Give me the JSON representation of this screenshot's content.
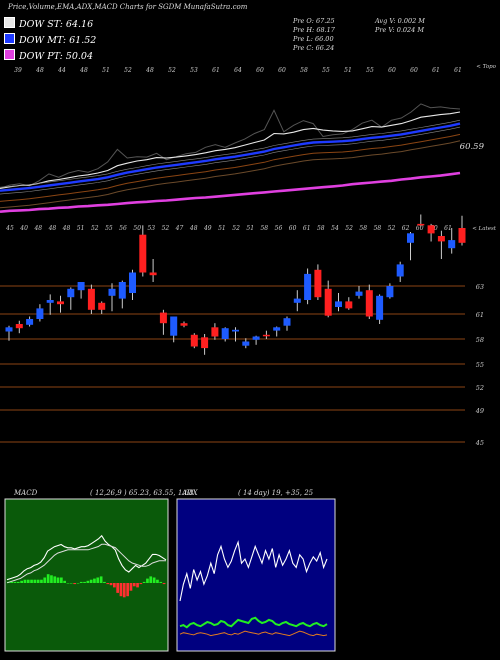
{
  "title": "Price,Volume,EMA,ADX,MACD Charts for SGDM MunafaSutra.com",
  "legend": [
    {
      "label": "DOW ST: 64.16",
      "color": "#e8e8e8"
    },
    {
      "label": "DOW MT: 61.52",
      "color": "#1e3aff"
    },
    {
      "label": "DOW PT: 50.04",
      "color": "#e040e0"
    }
  ],
  "stats": {
    "open": "Pre  O: 67.25",
    "high": "Pre  H: 68.17",
    "low": "Pre  L: 66.00",
    "close": "Pre  C: 66.24",
    "avg_vol": "Avg V: 0.002  M",
    "pre_vol": "Pre  V: 0.024  M"
  },
  "colors": {
    "up": "#1e5bff",
    "down": "#ff2020",
    "ema_st": "#e8e8e8",
    "ema_mt": "#1e3aff",
    "ema_pt": "#e040e0",
    "grid": "#8b4513",
    "macd_bg": "#0a5a0a",
    "adx_bg": "#000080"
  },
  "chart_data": [
    {
      "type": "line",
      "name": "EMA panel",
      "top_label": "< Topo",
      "value_label": "60.59",
      "tick_labels": [
        "39",
        "48",
        "44",
        "48",
        "51",
        "52",
        "48",
        "52",
        "53",
        "61",
        "64",
        "60",
        "60",
        "58",
        "55",
        "51",
        "55",
        "60",
        "60",
        "61",
        "61"
      ],
      "series": [
        {
          "name": "Price",
          "values": [
            46.5,
            47.2,
            47.5,
            47.0,
            48.2,
            49.8,
            49.0,
            50.0,
            50.6,
            50.2,
            51.0,
            52.6,
            55.5,
            53.5,
            53.8,
            53.7,
            54.6,
            53.1,
            53.8,
            54.5,
            54.8,
            56.0,
            56.6,
            56.0,
            57.0,
            57.9,
            59.2,
            60.1,
            64.6,
            59.6,
            61.1,
            62.2,
            61.5,
            58.5,
            58.9,
            59.1,
            60.1,
            61.6,
            62.3,
            60.7,
            62.3,
            62.8,
            64.2,
            66.1,
            65.2,
            65.4,
            65.1,
            64.9
          ]
        },
        {
          "name": "EMA ST",
          "values": [
            46.4,
            46.8,
            47.1,
            47.2,
            47.6,
            48.2,
            48.5,
            48.9,
            49.3,
            49.6,
            50.0,
            50.6,
            51.7,
            52.3,
            52.8,
            53.1,
            53.6,
            53.5,
            53.7,
            54.0,
            54.3,
            54.7,
            55.2,
            55.5,
            55.9,
            56.5,
            57.1,
            57.7,
            59.2,
            59.1,
            59.5,
            60.1,
            60.4,
            60.0,
            59.8,
            59.7,
            59.8,
            60.3,
            60.8,
            60.7,
            61.1,
            61.5,
            62.2,
            63.0,
            63.3,
            63.6,
            63.8,
            64.2
          ]
        },
        {
          "name": "EMA MT",
          "values": [
            45.9,
            46.1,
            46.3,
            46.5,
            46.8,
            47.1,
            47.4,
            47.7,
            48.0,
            48.3,
            48.6,
            49.0,
            49.6,
            50.1,
            50.5,
            50.9,
            51.3,
            51.6,
            51.9,
            52.2,
            52.5,
            52.8,
            53.2,
            53.5,
            53.8,
            54.2,
            54.6,
            55.0,
            55.6,
            56.0,
            56.4,
            56.8,
            57.1,
            57.2,
            57.3,
            57.4,
            57.6,
            57.9,
            58.2,
            58.4,
            58.7,
            59.0,
            59.4,
            59.8,
            60.2,
            60.6,
            61.0,
            61.5
          ]
        },
        {
          "name": "EMA PT",
          "values": [
            41.0,
            41.2,
            41.3,
            41.4,
            41.6,
            41.7,
            41.9,
            42.0,
            42.2,
            42.3,
            42.5,
            42.6,
            42.8,
            43.0,
            43.2,
            43.3,
            43.5,
            43.6,
            43.8,
            44.0,
            44.2,
            44.3,
            44.5,
            44.7,
            44.9,
            45.1,
            45.3,
            45.5,
            45.7,
            45.9,
            46.1,
            46.3,
            46.5,
            46.7,
            46.9,
            47.1,
            47.4,
            47.6,
            47.8,
            48.0,
            48.2,
            48.5,
            48.7,
            49.0,
            49.2,
            49.4,
            49.7,
            50.0
          ]
        }
      ]
    },
    {
      "type": "candlestick",
      "name": "Price panel",
      "top_label": "< Latest",
      "ylim": [
        39,
        71
      ],
      "yticks": [
        63,
        61,
        58,
        55,
        52,
        49,
        45
      ],
      "tick_labels": [
        "45",
        "40",
        "48",
        "48",
        "48",
        "51",
        "52",
        "55",
        "56",
        "50",
        "53",
        "52",
        "47",
        "48",
        "49",
        "51",
        "52",
        "51",
        "58",
        "56",
        "60",
        "61",
        "58",
        "54",
        "52",
        "58",
        "58",
        "52",
        "62",
        "60",
        "60",
        "61"
      ],
      "candles": [
        {
          "o": 58.9,
          "h": 59.6,
          "l": 57.8,
          "c": 59.4
        },
        {
          "o": 59.8,
          "h": 60.2,
          "l": 58.7,
          "c": 59.3
        },
        {
          "o": 59.7,
          "h": 60.7,
          "l": 59.5,
          "c": 60.4
        },
        {
          "o": 60.4,
          "h": 61.7,
          "l": 60.1,
          "c": 61.4
        },
        {
          "o": 61.8,
          "h": 62.4,
          "l": 60.9,
          "c": 62.0
        },
        {
          "o": 61.9,
          "h": 62.3,
          "l": 61.1,
          "c": 61.7
        },
        {
          "o": 62.2,
          "h": 62.9,
          "l": 61.3,
          "c": 62.8
        },
        {
          "o": 62.7,
          "h": 63.3,
          "l": 62.1,
          "c": 63.3
        },
        {
          "o": 62.8,
          "h": 63.1,
          "l": 61.0,
          "c": 61.3
        },
        {
          "o": 61.8,
          "h": 61.9,
          "l": 61.0,
          "c": 61.3
        },
        {
          "o": 62.3,
          "h": 63.2,
          "l": 61.2,
          "c": 62.8
        },
        {
          "o": 62.1,
          "h": 63.4,
          "l": 61.4,
          "c": 63.3
        },
        {
          "o": 62.5,
          "h": 64.2,
          "l": 62.0,
          "c": 64.0
        },
        {
          "o": 66.8,
          "h": 67.5,
          "l": 63.7,
          "c": 64.0
        },
        {
          "o": 64.0,
          "h": 65.0,
          "l": 63.3,
          "c": 63.8
        },
        {
          "o": 61.1,
          "h": 61.3,
          "l": 58.5,
          "c": 59.9
        },
        {
          "o": 58.4,
          "h": 60.7,
          "l": 57.6,
          "c": 60.7
        },
        {
          "o": 59.9,
          "h": 60.1,
          "l": 59.4,
          "c": 59.6
        },
        {
          "o": 58.5,
          "h": 58.7,
          "l": 56.9,
          "c": 57.1
        },
        {
          "o": 58.2,
          "h": 58.6,
          "l": 56.1,
          "c": 56.9
        },
        {
          "o": 59.4,
          "h": 59.9,
          "l": 57.9,
          "c": 58.3
        },
        {
          "o": 58.0,
          "h": 59.4,
          "l": 57.7,
          "c": 59.3
        },
        {
          "o": 58.9,
          "h": 59.4,
          "l": 57.7,
          "c": 59.1
        },
        {
          "o": 57.2,
          "h": 58.1,
          "l": 56.9,
          "c": 57.7
        },
        {
          "o": 57.9,
          "h": 58.4,
          "l": 57.3,
          "c": 58.3
        },
        {
          "o": 58.5,
          "h": 59.0,
          "l": 58.0,
          "c": 58.4
        },
        {
          "o": 59.0,
          "h": 59.5,
          "l": 58.3,
          "c": 59.4
        },
        {
          "o": 59.6,
          "h": 60.7,
          "l": 59.0,
          "c": 60.5
        },
        {
          "o": 61.8,
          "h": 62.7,
          "l": 61.2,
          "c": 62.1
        },
        {
          "o": 62.0,
          "h": 64.3,
          "l": 61.7,
          "c": 63.9
        },
        {
          "o": 64.2,
          "h": 64.6,
          "l": 62.0,
          "c": 62.2
        },
        {
          "o": 62.8,
          "h": 63.4,
          "l": 60.6,
          "c": 60.8
        },
        {
          "o": 61.5,
          "h": 62.5,
          "l": 61.2,
          "c": 61.9
        },
        {
          "o": 61.9,
          "h": 62.2,
          "l": 61.3,
          "c": 61.4
        },
        {
          "o": 62.3,
          "h": 63.0,
          "l": 62.1,
          "c": 62.6
        },
        {
          "o": 62.7,
          "h": 63.1,
          "l": 60.4,
          "c": 60.7
        },
        {
          "o": 60.3,
          "h": 62.4,
          "l": 59.8,
          "c": 62.3
        },
        {
          "o": 62.2,
          "h": 63.2,
          "l": 62.1,
          "c": 63.0
        },
        {
          "o": 63.7,
          "h": 64.8,
          "l": 63.3,
          "c": 64.6
        },
        {
          "o": 66.2,
          "h": 67.0,
          "l": 64.9,
          "c": 66.9
        },
        {
          "o": 67.6,
          "h": 68.3,
          "l": 67.4,
          "c": 67.5
        },
        {
          "o": 67.5,
          "h": 67.6,
          "l": 66.3,
          "c": 66.9
        },
        {
          "o": 66.7,
          "h": 67.1,
          "l": 65.0,
          "c": 66.3
        },
        {
          "o": 65.8,
          "h": 67.3,
          "l": 65.4,
          "c": 66.4
        },
        {
          "o": 67.3,
          "h": 68.2,
          "l": 66.0,
          "c": 66.2
        }
      ]
    },
    {
      "type": "line",
      "name": "MACD panel",
      "label": "MACD",
      "params": "( 12,26,9 ) 65.23,  63.55,  1.68",
      "series": [
        {
          "name": "MACD",
          "values": [
            0.3,
            0.4,
            0.5,
            0.6,
            0.8,
            1.1,
            1.3,
            1.4,
            1.6,
            1.7,
            1.9,
            2.3,
            2.9,
            3.1,
            3.3,
            3.4,
            3.5,
            3.3,
            3.2,
            3.2,
            3.1,
            3.2,
            3.3,
            3.3,
            3.4,
            3.6,
            3.8,
            4.0,
            4.3,
            3.8,
            3.5,
            3.3,
            3.0,
            2.2,
            1.6,
            1.2,
            1.0,
            1.3,
            1.6,
            1.4,
            1.6,
            1.8,
            2.2,
            2.6,
            2.6,
            2.5,
            2.3,
            2.1
          ]
        },
        {
          "name": "Signal",
          "values": [
            0.2,
            0.3,
            0.4,
            0.5,
            0.6,
            0.8,
            1.0,
            1.1,
            1.3,
            1.4,
            1.6,
            1.8,
            2.1,
            2.4,
            2.7,
            2.9,
            3.0,
            3.1,
            3.2,
            3.2,
            3.2,
            3.2,
            3.2,
            3.2,
            3.2,
            3.3,
            3.4,
            3.5,
            3.7,
            3.7,
            3.6,
            3.5,
            3.4,
            3.1,
            2.8,
            2.5,
            2.2,
            2.0,
            1.9,
            1.8,
            1.7,
            1.7,
            1.8,
            2.0,
            2.1,
            2.2,
            2.2,
            2.2
          ]
        },
        {
          "name": "Histogram",
          "values": [
            0.1,
            0.1,
            0.1,
            0.1,
            0.2,
            0.3,
            0.3,
            0.3,
            0.3,
            0.3,
            0.3,
            0.5,
            0.8,
            0.7,
            0.6,
            0.5,
            0.5,
            0.2,
            0.0,
            0.0,
            -0.1,
            0.0,
            0.1,
            0.1,
            0.2,
            0.3,
            0.4,
            0.5,
            0.6,
            0.1,
            -0.1,
            -0.2,
            -0.4,
            -0.9,
            -1.2,
            -1.3,
            -1.2,
            -0.7,
            -0.3,
            -0.4,
            -0.1,
            0.1,
            0.4,
            0.6,
            0.5,
            0.3,
            0.1,
            -0.1
          ]
        }
      ]
    },
    {
      "type": "line",
      "name": "ADX panel",
      "label": "ADX",
      "params": "( 14  day) 19,  +35,  25",
      "series": [
        {
          "name": "ADX",
          "values": [
            20,
            28,
            33,
            26,
            35,
            30,
            34,
            28,
            32,
            38,
            33,
            42,
            46,
            40,
            36,
            39,
            44,
            48,
            38,
            40,
            36,
            41,
            46,
            42,
            38,
            44,
            40,
            45,
            36,
            42,
            37,
            40,
            44,
            38,
            36,
            42,
            40,
            34,
            38,
            41,
            39,
            43,
            36,
            40
          ]
        },
        {
          "name": "+DI",
          "values": [
            16,
            17,
            15,
            18,
            19,
            17,
            16,
            18,
            20,
            19,
            17,
            18,
            21,
            20,
            17,
            16,
            19,
            22,
            21,
            20,
            19,
            23,
            24,
            21,
            19,
            20,
            22,
            21,
            18,
            17,
            19,
            20,
            18,
            17,
            16,
            18,
            19,
            17,
            16,
            18,
            19,
            17,
            16,
            18
          ]
        },
        {
          "name": "-DI",
          "values": [
            12,
            14,
            13,
            12,
            11,
            13,
            14,
            13,
            12,
            10,
            11,
            12,
            13,
            14,
            12,
            11,
            13,
            12,
            14,
            16,
            15,
            14,
            13,
            12,
            14,
            15,
            13,
            12,
            14,
            13,
            12,
            11,
            10,
            12,
            14,
            16,
            15,
            13,
            11,
            10,
            12,
            11,
            10,
            11
          ]
        }
      ]
    }
  ]
}
